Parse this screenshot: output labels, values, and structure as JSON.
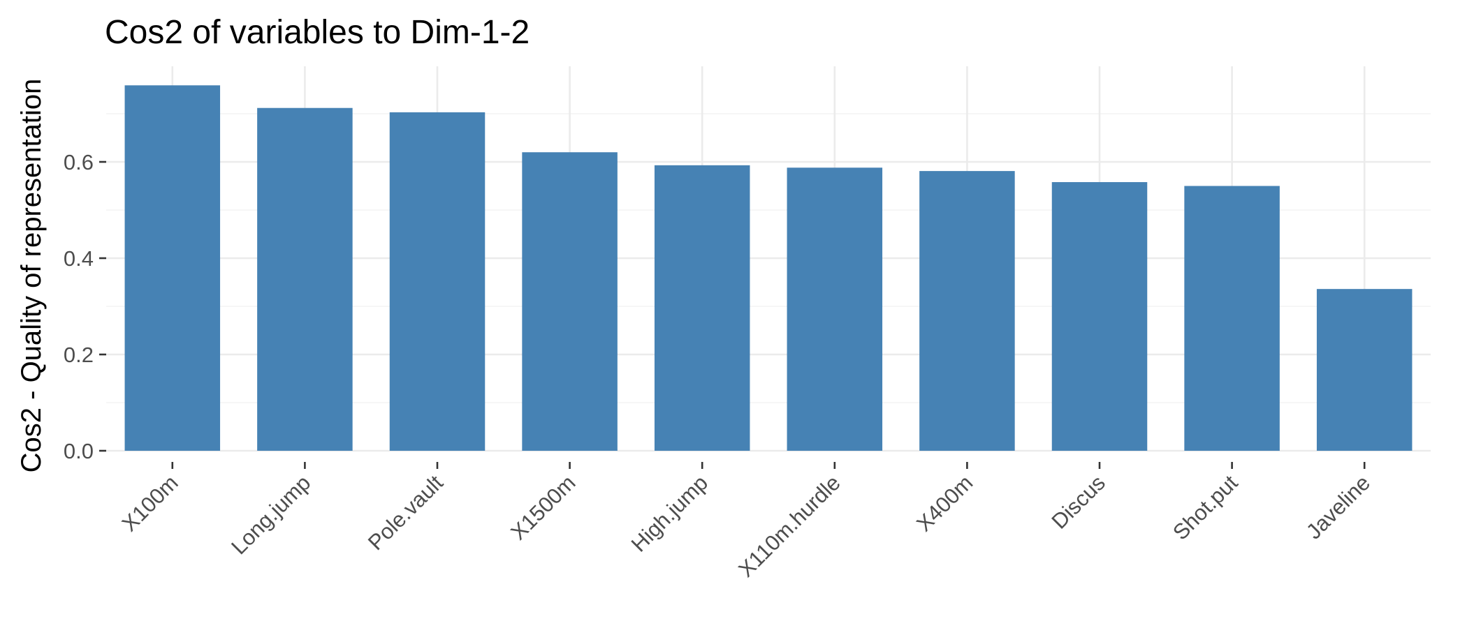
{
  "chart_data": {
    "type": "bar",
    "title": "Cos2 of variables to Dim-1-2",
    "xlabel": "",
    "ylabel": "Cos2 - Quality of representation",
    "categories": [
      "X100m",
      "Long.jump",
      "Pole.vault",
      "X1500m",
      "High.jump",
      "X110m.hurdle",
      "X400m",
      "Discus",
      "Shot.put",
      "Javeline"
    ],
    "values": [
      0.759,
      0.712,
      0.703,
      0.62,
      0.593,
      0.588,
      0.581,
      0.558,
      0.55,
      0.336
    ],
    "ylim": [
      0,
      0.76
    ],
    "yticks": [
      0.0,
      0.2,
      0.4,
      0.6
    ],
    "ytick_labels": [
      "0.0",
      "0.2",
      "0.4",
      "0.6"
    ],
    "grid": true,
    "legend": "none",
    "bar_color": "#4682B4"
  }
}
